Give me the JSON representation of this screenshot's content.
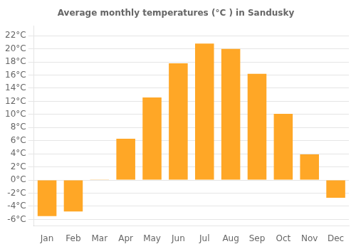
{
  "chart_data": {
    "type": "bar",
    "title": "Average monthly temperatures (°C ) in Sandusky",
    "categories": [
      "Jan",
      "Feb",
      "Mar",
      "Apr",
      "May",
      "Jun",
      "Jul",
      "Aug",
      "Sep",
      "Oct",
      "Nov",
      "Dec"
    ],
    "values": [
      -5.5,
      -4.8,
      0.1,
      6.3,
      12.6,
      17.8,
      20.8,
      20.0,
      16.2,
      10.1,
      3.9,
      -2.7
    ],
    "color": "#FFA726",
    "ylim": [
      -7,
      23.5
    ],
    "yticks": [
      {
        "value": -6,
        "label": "-6°C"
      },
      {
        "value": -4,
        "label": "-4°C"
      },
      {
        "value": -2,
        "label": "-2°C"
      },
      {
        "value": 0,
        "label": "0°C"
      },
      {
        "value": 2,
        "label": "2°C"
      },
      {
        "value": 4,
        "label": "4°C"
      },
      {
        "value": 6,
        "label": "6°C"
      },
      {
        "value": 8,
        "label": "8°C"
      },
      {
        "value": 10,
        "label": "10°C"
      },
      {
        "value": 12,
        "label": "12°C"
      },
      {
        "value": 14,
        "label": "14°C"
      },
      {
        "value": 16,
        "label": "16°C"
      },
      {
        "value": 18,
        "label": "18°C"
      },
      {
        "value": 20,
        "label": "20°C"
      },
      {
        "value": 22,
        "label": "22°C"
      }
    ],
    "grid": true
  }
}
